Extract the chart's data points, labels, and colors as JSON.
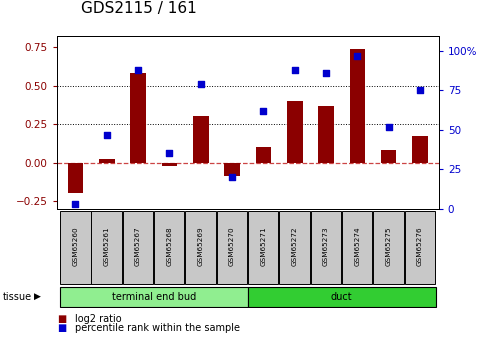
{
  "title": "GDS2115 / 161",
  "samples": [
    "GSM65260",
    "GSM65261",
    "GSM65267",
    "GSM65268",
    "GSM65269",
    "GSM65270",
    "GSM65271",
    "GSM65272",
    "GSM65273",
    "GSM65274",
    "GSM65275",
    "GSM65276"
  ],
  "log2_ratio": [
    -0.2,
    0.02,
    0.58,
    -0.02,
    0.3,
    -0.09,
    0.1,
    0.4,
    0.37,
    0.74,
    0.08,
    0.17
  ],
  "percentile_rank": [
    3,
    47,
    88,
    35,
    79,
    20,
    62,
    88,
    86,
    97,
    52,
    75
  ],
  "tissue_groups": [
    {
      "label": "terminal end bud",
      "start": 0,
      "end": 6,
      "color": "#90EE90"
    },
    {
      "label": "duct",
      "start": 6,
      "end": 12,
      "color": "#32CD32"
    }
  ],
  "bar_color": "#8B0000",
  "dot_color": "#0000CD",
  "ylim_left": [
    -0.3,
    0.82
  ],
  "ylim_right": [
    0,
    109.3
  ],
  "yticks_left": [
    -0.25,
    0.0,
    0.25,
    0.5,
    0.75
  ],
  "yticks_right": [
    0,
    25,
    50,
    75,
    100
  ],
  "ytick_labels_right": [
    "0",
    "25",
    "50",
    "75",
    "100%"
  ],
  "hlines": [
    0.25,
    0.5
  ],
  "zero_line_color": "#CC4444",
  "hline_color": "black",
  "background_color": "#ffffff",
  "plot_bg_color": "#ffffff",
  "title_fontsize": 11,
  "tick_fontsize": 7.5,
  "bar_width": 0.5,
  "sample_box_color": "#c8c8c8",
  "tissue_label": "tissue",
  "legend_log2": "log2 ratio",
  "legend_pct": "percentile rank within the sample"
}
